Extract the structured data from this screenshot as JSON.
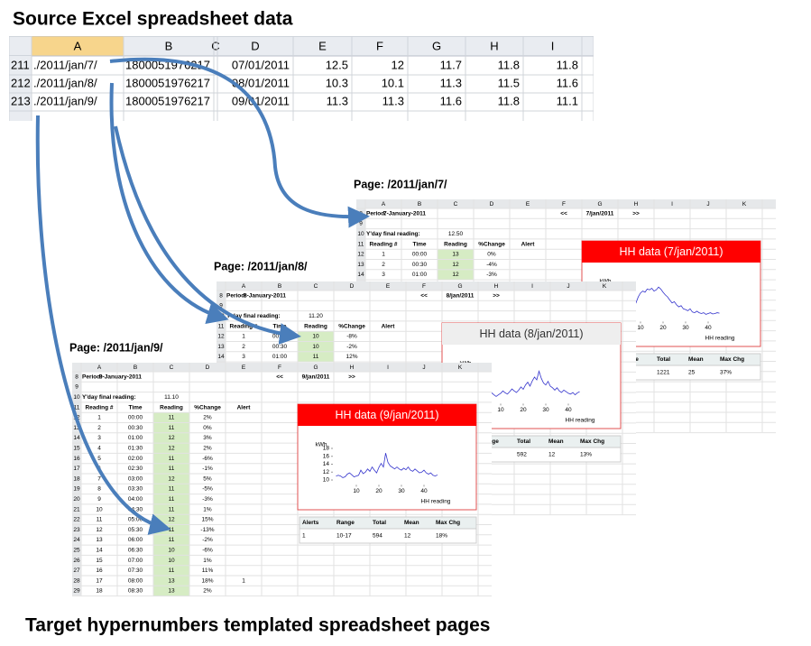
{
  "title": "Source Excel spreadsheet data",
  "footer": "Target hypernumbers templated spreadsheet pages",
  "source": {
    "headers": [
      "A",
      "B",
      "C",
      "D",
      "E",
      "F",
      "G",
      "H",
      "I"
    ],
    "rows": [
      [
        "211",
        "./2011/jan/7/",
        "1800051976217",
        "07/01/2011",
        "12.5",
        "12",
        "11.7",
        "11.8",
        "11.8"
      ],
      [
        "212",
        "./2011/jan/8/",
        "1800051976217",
        "08/01/2011",
        "10.3",
        "10.1",
        "11.3",
        "11.5",
        "11.6"
      ],
      [
        "213",
        "./2011/jan/9/",
        "1800051976217",
        "09/01/2011",
        "11.3",
        "11.3",
        "11.6",
        "11.8",
        "11.1"
      ]
    ]
  },
  "pages": [
    {
      "label": "Page: /2011/jan/7/",
      "col_headers": [
        "A",
        "B",
        "C",
        "D",
        "E",
        "F",
        "G",
        "H",
        "I",
        "J",
        "K"
      ],
      "row_numbers": [
        "8",
        "9",
        "10",
        "11",
        "12",
        "13",
        "14"
      ],
      "period_label": "Period:",
      "period": "7-January-2011",
      "prev": "<<",
      "date": "7/jan/2011",
      "next": ">>",
      "yday_label": "Y'day final reading:",
      "yday": "12.50",
      "headers": [
        "Reading #",
        "Time",
        "Reading",
        "%Change",
        "Alert"
      ],
      "rows": [
        [
          "1",
          "00:00",
          "13",
          "0%"
        ],
        [
          "2",
          "00:30",
          "12",
          "-4%"
        ],
        [
          "3",
          "01:00",
          "12",
          "-3%"
        ]
      ],
      "chart": {
        "type": "line",
        "title": "HH data (7/jan/2011)",
        "header_color": "#ff0000",
        "title_color": "#ffffff",
        "color": "#3333cc",
        "y_label": "kWh",
        "x_label": "HH reading",
        "ylim": [
          9,
          19
        ],
        "xlim": [
          0,
          50
        ],
        "xticks": [
          10,
          20,
          30,
          40
        ],
        "x": [
          1,
          2,
          3,
          4,
          5,
          6,
          7,
          8,
          9,
          10,
          11,
          12,
          13,
          14,
          15,
          16,
          17,
          18,
          19,
          20,
          21,
          22,
          23,
          24,
          25,
          26,
          27,
          28,
          29,
          30,
          31,
          32,
          33,
          34,
          35,
          36,
          37,
          38,
          39,
          40,
          41,
          42,
          43,
          44,
          45
        ],
        "values": [
          10.5,
          10.8,
          11,
          10.6,
          11,
          11.8,
          12.5,
          13.5,
          15,
          16,
          16.5,
          16.2,
          17,
          16.8,
          17.2,
          16.5,
          16.8,
          17.5,
          17,
          16.2,
          15.5,
          15,
          14.2,
          13.5,
          13.8,
          13,
          12.5,
          12.8,
          12,
          11.8,
          11.5,
          12,
          11.2,
          11,
          11.4,
          11,
          10.8,
          11,
          10.6,
          10.8,
          11,
          10.7,
          10.8,
          11,
          10.9
        ]
      },
      "summary": {
        "headers": [
          "Alerts",
          "Range",
          "Total",
          "Mean",
          "Max Chg"
        ],
        "values": [
          "1221",
          "25",
          "37%"
        ]
      }
    },
    {
      "label": "Page: /2011/jan/8/",
      "col_headers": [
        "A",
        "B",
        "C",
        "D",
        "E",
        "F",
        "G",
        "H",
        "I",
        "J",
        "K"
      ],
      "row_numbers": [
        "8",
        "9",
        "10",
        "11",
        "12",
        "13",
        "14"
      ],
      "period_label": "Period:",
      "period": "8-January-2011",
      "prev": "<<",
      "date": "8/jan/2011",
      "next": ">>",
      "yday_label": "Y'day final reading:",
      "yday": "11.20",
      "headers": [
        "Reading #",
        "Time",
        "Reading",
        "%Change",
        "Alert"
      ],
      "rows": [
        [
          "1",
          "00:00",
          "10",
          "-8%"
        ],
        [
          "2",
          "00:30",
          "10",
          "-2%"
        ],
        [
          "3",
          "01:00",
          "11",
          "12%"
        ]
      ],
      "chart": {
        "type": "line",
        "title": "HH data (8/jan/2011)",
        "header_color": "#eeeeee",
        "title_color": "#333333",
        "color": "#3333cc",
        "y_label": "kWh",
        "x_label": "HH reading",
        "ylim": [
          9,
          19
        ],
        "xlim": [
          0,
          50
        ],
        "xticks": [
          10,
          20,
          30,
          40
        ],
        "x": [
          1,
          2,
          3,
          4,
          5,
          6,
          7,
          8,
          9,
          10,
          11,
          12,
          13,
          14,
          15,
          16,
          17,
          18,
          19,
          20,
          21,
          22,
          23,
          24,
          25,
          26,
          27,
          28,
          29,
          30,
          31,
          32,
          33,
          34,
          35,
          36,
          37,
          38,
          39,
          40,
          41,
          42,
          43,
          44,
          45
        ],
        "values": [
          11,
          10.8,
          10.5,
          10.8,
          11,
          11.5,
          11,
          10.6,
          11,
          11.4,
          12,
          11.5,
          11.2,
          11.8,
          12.5,
          12,
          11.6,
          12.2,
          13,
          12.4,
          13.5,
          14.2,
          13.2,
          14.5,
          15.5,
          14.8,
          17,
          15.2,
          14,
          13.5,
          14.4,
          13.2,
          12.8,
          12.2,
          12.8,
          12,
          11.6,
          12.2,
          11.8,
          11.4,
          11.2,
          11.6,
          11,
          11.5,
          11.8
        ]
      },
      "summary": {
        "headers": [
          "Alerts",
          "Range",
          "Total",
          "Mean",
          "Max Chg"
        ],
        "values": [
          "592",
          "12",
          "13%"
        ]
      }
    },
    {
      "label": "Page: /2011/jan/9/",
      "col_headers": [
        "A",
        "B",
        "C",
        "D",
        "E",
        "F",
        "G",
        "H",
        "I",
        "J",
        "K"
      ],
      "row_numbers": [
        "8",
        "9",
        "10",
        "11",
        "12",
        "13",
        "14",
        "15",
        "16",
        "17",
        "18",
        "19",
        "20",
        "21",
        "22",
        "23",
        "24",
        "25",
        "26",
        "27",
        "28",
        "29"
      ],
      "period_label": "Period:",
      "period": "9-January-2011",
      "prev": "<<",
      "date": "9/jan/2011",
      "next": ">>",
      "yday_label": "Y'day final reading:",
      "yday": "11.10",
      "headers": [
        "Reading #",
        "Time",
        "Reading",
        "%Change",
        "Alert"
      ],
      "rows": [
        [
          "1",
          "00:00",
          "11",
          "2%"
        ],
        [
          "2",
          "00:30",
          "11",
          "0%"
        ],
        [
          "3",
          "01:00",
          "12",
          "3%"
        ],
        [
          "4",
          "01:30",
          "12",
          "2%"
        ],
        [
          "5",
          "02:00",
          "11",
          "-6%"
        ],
        [
          "6",
          "02:30",
          "11",
          "-1%"
        ],
        [
          "7",
          "03:00",
          "12",
          "5%"
        ],
        [
          "8",
          "03:30",
          "11",
          "-5%"
        ],
        [
          "9",
          "04:00",
          "11",
          "-3%"
        ],
        [
          "10",
          "04:30",
          "11",
          "1%"
        ],
        [
          "11",
          "05:00",
          "12",
          "15%"
        ],
        [
          "12",
          "05:30",
          "11",
          "-13%"
        ],
        [
          "13",
          "06:00",
          "11",
          "-2%"
        ],
        [
          "14",
          "06:30",
          "10",
          "-6%"
        ],
        [
          "15",
          "07:00",
          "10",
          "1%"
        ],
        [
          "16",
          "07:30",
          "11",
          "11%"
        ],
        [
          "17",
          "08:00",
          "13",
          "18%",
          "1"
        ],
        [
          "18",
          "08:30",
          "13",
          "2%"
        ]
      ],
      "chart": {
        "type": "line",
        "title": "HH data (9/jan/2011)",
        "header_color": "#ff0000",
        "title_color": "#ffffff",
        "color": "#3333cc",
        "y_label": "kWh",
        "x_label": "HH reading",
        "ylim": [
          9,
          19
        ],
        "yticks": [
          10,
          12,
          14,
          16,
          18
        ],
        "xlim": [
          0,
          50
        ],
        "xticks": [
          10,
          20,
          30,
          40
        ],
        "x": [
          1,
          2,
          3,
          4,
          5,
          6,
          7,
          8,
          9,
          10,
          11,
          12,
          13,
          14,
          15,
          16,
          17,
          18,
          19,
          20,
          21,
          22,
          23,
          24,
          25,
          26,
          27,
          28,
          29,
          30,
          31,
          32,
          33,
          34,
          35,
          36,
          37,
          38,
          39,
          40,
          41,
          42,
          43,
          44,
          45,
          46
        ],
        "values": [
          11,
          11.2,
          11,
          10.6,
          10.8,
          11.5,
          11.8,
          11.3,
          10.8,
          11,
          11.2,
          12.5,
          11.6,
          12,
          12.8,
          12.2,
          13.3,
          12.5,
          11.8,
          13.2,
          14.2,
          13.3,
          16.8,
          14.5,
          13.6,
          13.2,
          12.8,
          13.3,
          12.8,
          12.5,
          13,
          12.6,
          13.3,
          12.5,
          12.2,
          12.8,
          12.3,
          11.8,
          12,
          12.5,
          11.8,
          11.5,
          11.8,
          11.2,
          11,
          11.3
        ]
      },
      "summary": {
        "headers": [
          "Alerts",
          "Range",
          "Total",
          "Mean",
          "Max Chg"
        ],
        "values": [
          "1",
          "10-17",
          "594",
          "12",
          "18%"
        ]
      }
    }
  ]
}
